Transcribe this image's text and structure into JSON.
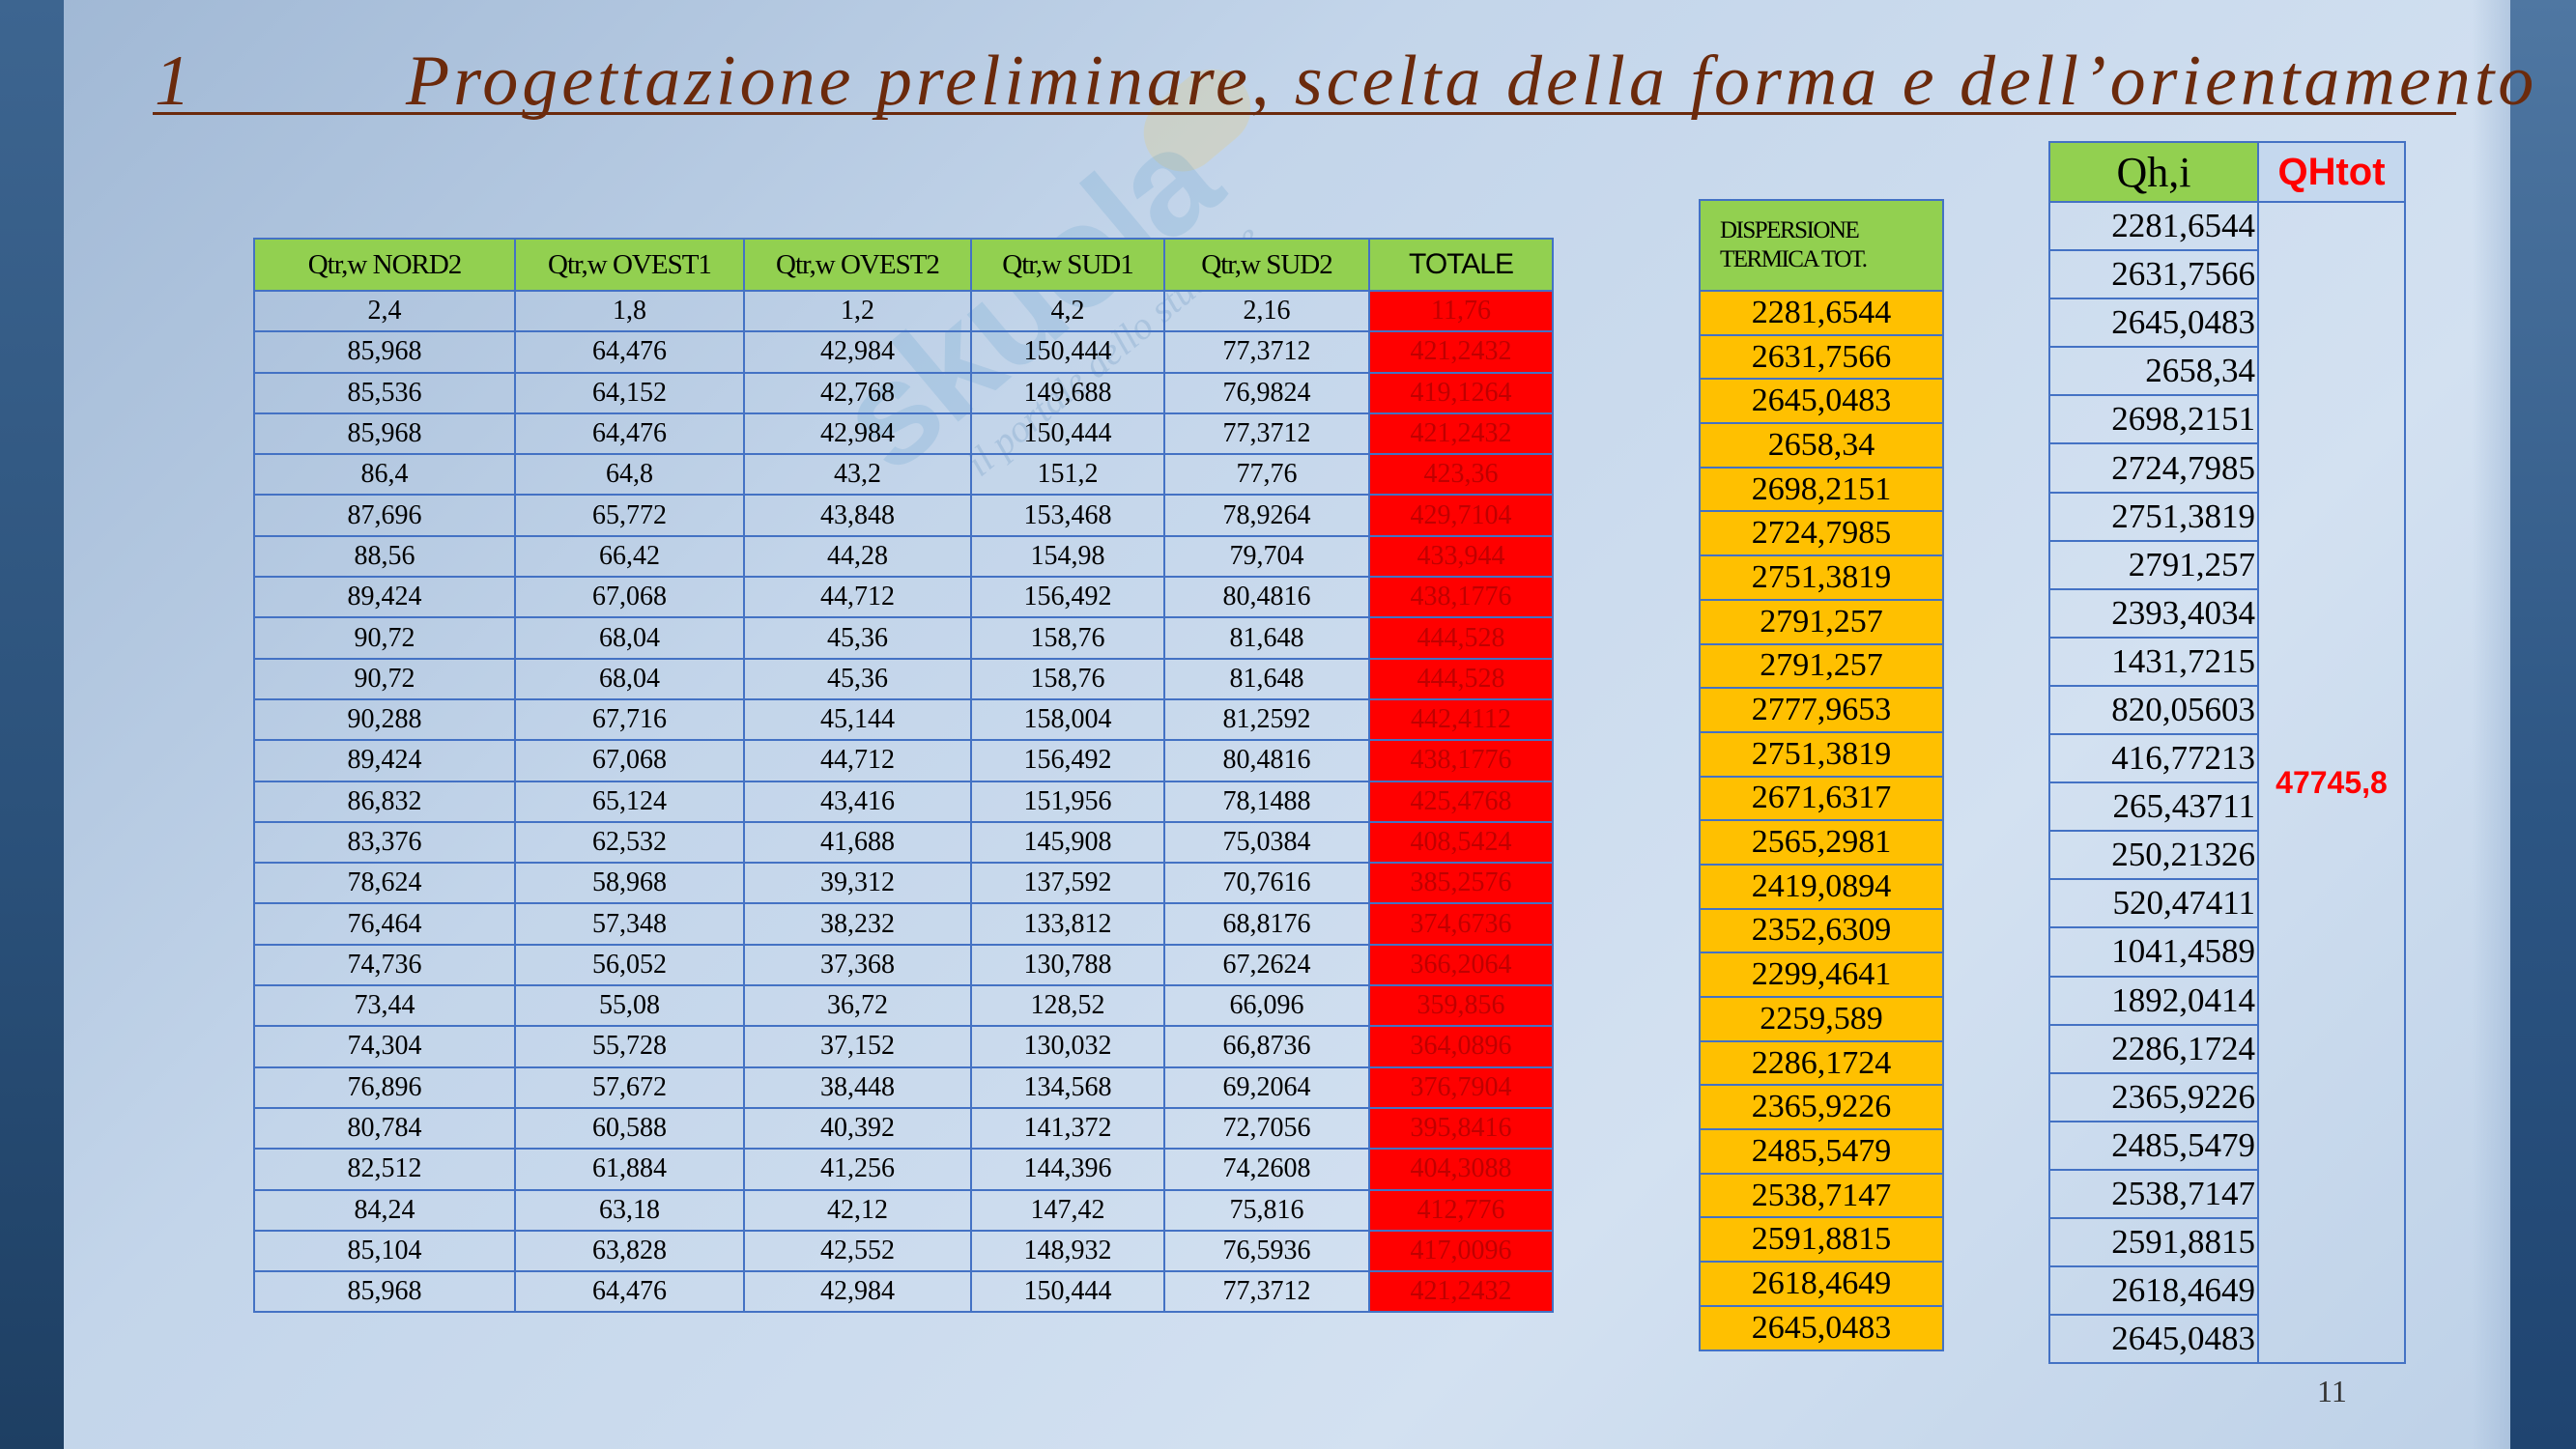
{
  "slide": {
    "title_number": "1",
    "title_text": "Progettazione preliminare, scelta della forma e dell’orientamento",
    "page_number": "11",
    "background_color": "#c3d5ea",
    "accent_color": "#6b2a0c"
  },
  "table_transmission": {
    "headers": [
      "Qtr,w NORD2",
      "Qtr,w OVEST1",
      "Qtr,w OVEST2",
      "Qtr,w SUD1",
      "Qtr,w SUD2",
      "TOTALE"
    ],
    "header_color": "#92d050",
    "total_color": "#ff0000",
    "rows": [
      [
        "2,4",
        "1,8",
        "1,2",
        "4,2",
        "2,16",
        "11,76"
      ],
      [
        "85,968",
        "64,476",
        "42,984",
        "150,444",
        "77,3712",
        "421,2432"
      ],
      [
        "85,536",
        "64,152",
        "42,768",
        "149,688",
        "76,9824",
        "419,1264"
      ],
      [
        "85,968",
        "64,476",
        "42,984",
        "150,444",
        "77,3712",
        "421,2432"
      ],
      [
        "86,4",
        "64,8",
        "43,2",
        "151,2",
        "77,76",
        "423,36"
      ],
      [
        "87,696",
        "65,772",
        "43,848",
        "153,468",
        "78,9264",
        "429,7104"
      ],
      [
        "88,56",
        "66,42",
        "44,28",
        "154,98",
        "79,704",
        "433,944"
      ],
      [
        "89,424",
        "67,068",
        "44,712",
        "156,492",
        "80,4816",
        "438,1776"
      ],
      [
        "90,72",
        "68,04",
        "45,36",
        "158,76",
        "81,648",
        "444,528"
      ],
      [
        "90,72",
        "68,04",
        "45,36",
        "158,76",
        "81,648",
        "444,528"
      ],
      [
        "90,288",
        "67,716",
        "45,144",
        "158,004",
        "81,2592",
        "442,4112"
      ],
      [
        "89,424",
        "67,068",
        "44,712",
        "156,492",
        "80,4816",
        "438,1776"
      ],
      [
        "86,832",
        "65,124",
        "43,416",
        "151,956",
        "78,1488",
        "425,4768"
      ],
      [
        "83,376",
        "62,532",
        "41,688",
        "145,908",
        "75,0384",
        "408,5424"
      ],
      [
        "78,624",
        "58,968",
        "39,312",
        "137,592",
        "70,7616",
        "385,2576"
      ],
      [
        "76,464",
        "57,348",
        "38,232",
        "133,812",
        "68,8176",
        "374,6736"
      ],
      [
        "74,736",
        "56,052",
        "37,368",
        "130,788",
        "67,2624",
        "366,2064"
      ],
      [
        "73,44",
        "55,08",
        "36,72",
        "128,52",
        "66,096",
        "359,856"
      ],
      [
        "74,304",
        "55,728",
        "37,152",
        "130,032",
        "66,8736",
        "364,0896"
      ],
      [
        "76,896",
        "57,672",
        "38,448",
        "134,568",
        "69,2064",
        "376,7904"
      ],
      [
        "80,784",
        "60,588",
        "40,392",
        "141,372",
        "72,7056",
        "395,8416"
      ],
      [
        "82,512",
        "61,884",
        "41,256",
        "144,396",
        "74,2608",
        "404,3088"
      ],
      [
        "84,24",
        "63,18",
        "42,12",
        "147,42",
        "75,816",
        "412,776"
      ],
      [
        "85,104",
        "63,828",
        "42,552",
        "148,932",
        "76,5936",
        "417,0096"
      ],
      [
        "85,968",
        "64,476",
        "42,984",
        "150,444",
        "77,3712",
        "421,2432"
      ]
    ]
  },
  "table_dispersion": {
    "header_line1": "DISPERSIONE",
    "header_line2": "TERMICA TOT.",
    "cell_color": "#ffc000",
    "values": [
      "2281,6544",
      "2631,7566",
      "2645,0483",
      "2658,34",
      "2698,2151",
      "2724,7985",
      "2751,3819",
      "2791,257",
      "2791,257",
      "2777,9653",
      "2751,3819",
      "2671,6317",
      "2565,2981",
      "2419,0894",
      "2352,6309",
      "2299,4641",
      "2259,589",
      "2286,1724",
      "2365,9226",
      "2485,5479",
      "2538,7147",
      "2591,8815",
      "2618,4649",
      "2645,0483"
    ]
  },
  "table_qh": {
    "header_qh": "Qh,i",
    "header_total": "QHtot",
    "total_value": "47745,8",
    "total_color": "#ff0000",
    "values": [
      "2281,6544",
      "2631,7566",
      "2645,0483",
      "2658,34",
      "2698,2151",
      "2724,7985",
      "2751,3819",
      "2791,257",
      "2393,4034",
      "1431,7215",
      "820,05603",
      "416,77213",
      "265,43711",
      "250,21326",
      "520,47411",
      "1041,4589",
      "1892,0414",
      "2286,1724",
      "2365,9226",
      "2485,5479",
      "2538,7147",
      "2591,8815",
      "2618,4649",
      "2645,0483"
    ]
  }
}
